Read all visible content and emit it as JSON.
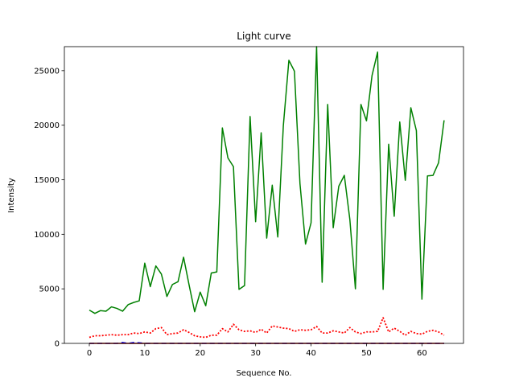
{
  "chart_data": {
    "type": "line",
    "title": "Light curve",
    "xlabel": "Sequence No.",
    "ylabel": "Intensity",
    "xlim": [
      -4.5,
      67.5
    ],
    "ylim": [
      0,
      27200
    ],
    "xticks": [
      0,
      10,
      20,
      30,
      40,
      50,
      60
    ],
    "yticks": [
      0,
      5000,
      10000,
      15000,
      20000,
      25000
    ],
    "grid": false,
    "legend": "none",
    "x": [
      0,
      1,
      2,
      3,
      4,
      5,
      6,
      7,
      8,
      9,
      10,
      11,
      12,
      13,
      14,
      15,
      16,
      17,
      18,
      19,
      20,
      21,
      22,
      23,
      24,
      25,
      26,
      27,
      28,
      29,
      30,
      31,
      32,
      33,
      34,
      35,
      36,
      37,
      38,
      39,
      40,
      41,
      42,
      43,
      44,
      45,
      46,
      47,
      48,
      49,
      50,
      51,
      52,
      53,
      54,
      55,
      56,
      57,
      58,
      59,
      60,
      61,
      62,
      63,
      64
    ],
    "series": [
      {
        "color": "#008000",
        "style": "solid",
        "values": [
          3050,
          2750,
          3000,
          2950,
          3350,
          3200,
          2950,
          3550,
          3750,
          3900,
          7350,
          5200,
          7100,
          6350,
          4300,
          5400,
          5650,
          7900,
          5350,
          2900,
          4700,
          3450,
          6450,
          6550,
          19750,
          17000,
          16200,
          4950,
          5300,
          20800,
          11150,
          19300,
          9650,
          14500,
          9750,
          19950,
          25950,
          24950,
          14650,
          9100,
          11050,
          27200,
          5600,
          21900,
          10600,
          14400,
          15400,
          11350,
          5000,
          21900,
          20400,
          24550,
          26700,
          4950,
          18250,
          11650,
          20300,
          14950,
          21600,
          19500,
          4050,
          15350,
          15400,
          16550,
          20450
        ]
      },
      {
        "color": "#ff0000",
        "style": "dotted",
        "values": [
          550,
          700,
          700,
          750,
          800,
          750,
          800,
          800,
          950,
          900,
          1050,
          950,
          1350,
          1450,
          800,
          900,
          950,
          1250,
          1000,
          700,
          600,
          550,
          750,
          750,
          1350,
          1050,
          1750,
          1250,
          1100,
          1150,
          1000,
          1300,
          950,
          1600,
          1500,
          1400,
          1350,
          1100,
          1250,
          1200,
          1250,
          1550,
          950,
          950,
          1150,
          1050,
          950,
          1450,
          1050,
          900,
          1050,
          1050,
          1100,
          2350,
          1050,
          1400,
          1100,
          750,
          1100,
          900,
          850,
          1100,
          1200,
          1050,
          750
        ]
      },
      {
        "color": "#0000ff",
        "style": "dashed",
        "values": [
          0,
          0,
          0,
          0,
          0,
          0,
          80,
          0,
          80,
          60,
          0,
          0,
          0,
          0,
          0,
          0,
          0,
          0,
          0,
          0,
          0,
          0,
          0,
          0,
          0,
          0,
          0,
          0,
          0,
          0,
          0,
          0,
          0,
          0,
          0,
          0,
          0,
          0,
          0,
          0,
          0,
          0,
          0,
          0,
          0,
          0,
          0,
          0,
          0,
          0,
          0,
          0,
          0,
          0,
          0,
          0,
          0,
          0,
          0,
          0,
          0,
          0,
          0,
          0,
          0
        ]
      },
      {
        "color": "#8b0000",
        "style": "solid",
        "values": [
          0,
          0,
          0,
          0,
          0,
          0,
          0,
          0,
          0,
          0,
          0,
          0,
          0,
          0,
          0,
          0,
          0,
          0,
          0,
          0,
          0,
          0,
          0,
          0,
          0,
          0,
          0,
          0,
          0,
          0,
          0,
          0,
          0,
          0,
          0,
          0,
          0,
          0,
          0,
          0,
          0,
          0,
          0,
          0,
          0,
          0,
          0,
          0,
          0,
          0,
          0,
          0,
          0,
          0,
          0,
          0,
          0,
          0,
          0,
          0,
          0,
          0,
          0,
          0,
          0
        ]
      }
    ]
  }
}
